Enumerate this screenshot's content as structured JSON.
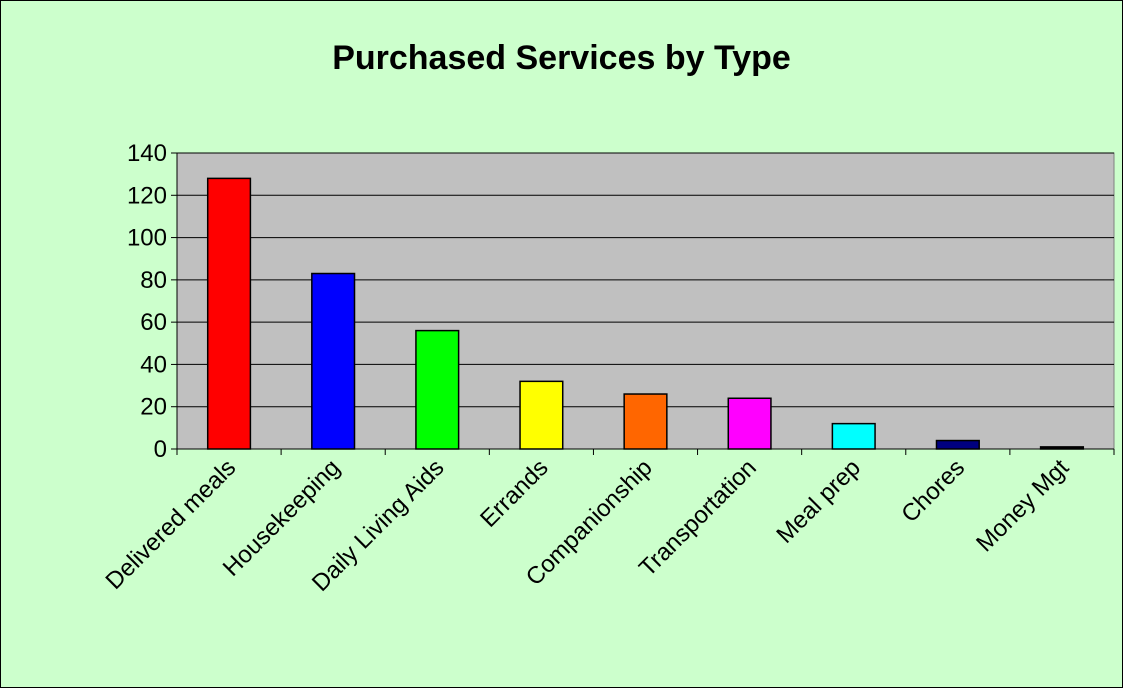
{
  "chart_data": {
    "type": "bar",
    "title": "Purchased Services by Type",
    "xlabel": "",
    "ylabel": "",
    "categories": [
      "Delivered meals",
      "Housekeeping",
      "Daily Living Aids",
      "Errands",
      "Companionship",
      "Transportation",
      "Meal prep",
      "Chores",
      "Money Mgt"
    ],
    "values": [
      128,
      83,
      56,
      32,
      26,
      24,
      12,
      4,
      1
    ],
    "bar_colors": [
      "#ff0000",
      "#0000ff",
      "#00ff00",
      "#ffff00",
      "#ff6600",
      "#ff00ff",
      "#00ffff",
      "#000080",
      "#000000"
    ],
    "ylim": [
      0,
      140
    ],
    "yticks": [
      0,
      20,
      40,
      60,
      80,
      100,
      120,
      140
    ],
    "grid": true,
    "legend": "none",
    "colors": {
      "background": "#ccffcc",
      "plot_area": "#c0c0c0",
      "gridline": "#000000"
    }
  }
}
